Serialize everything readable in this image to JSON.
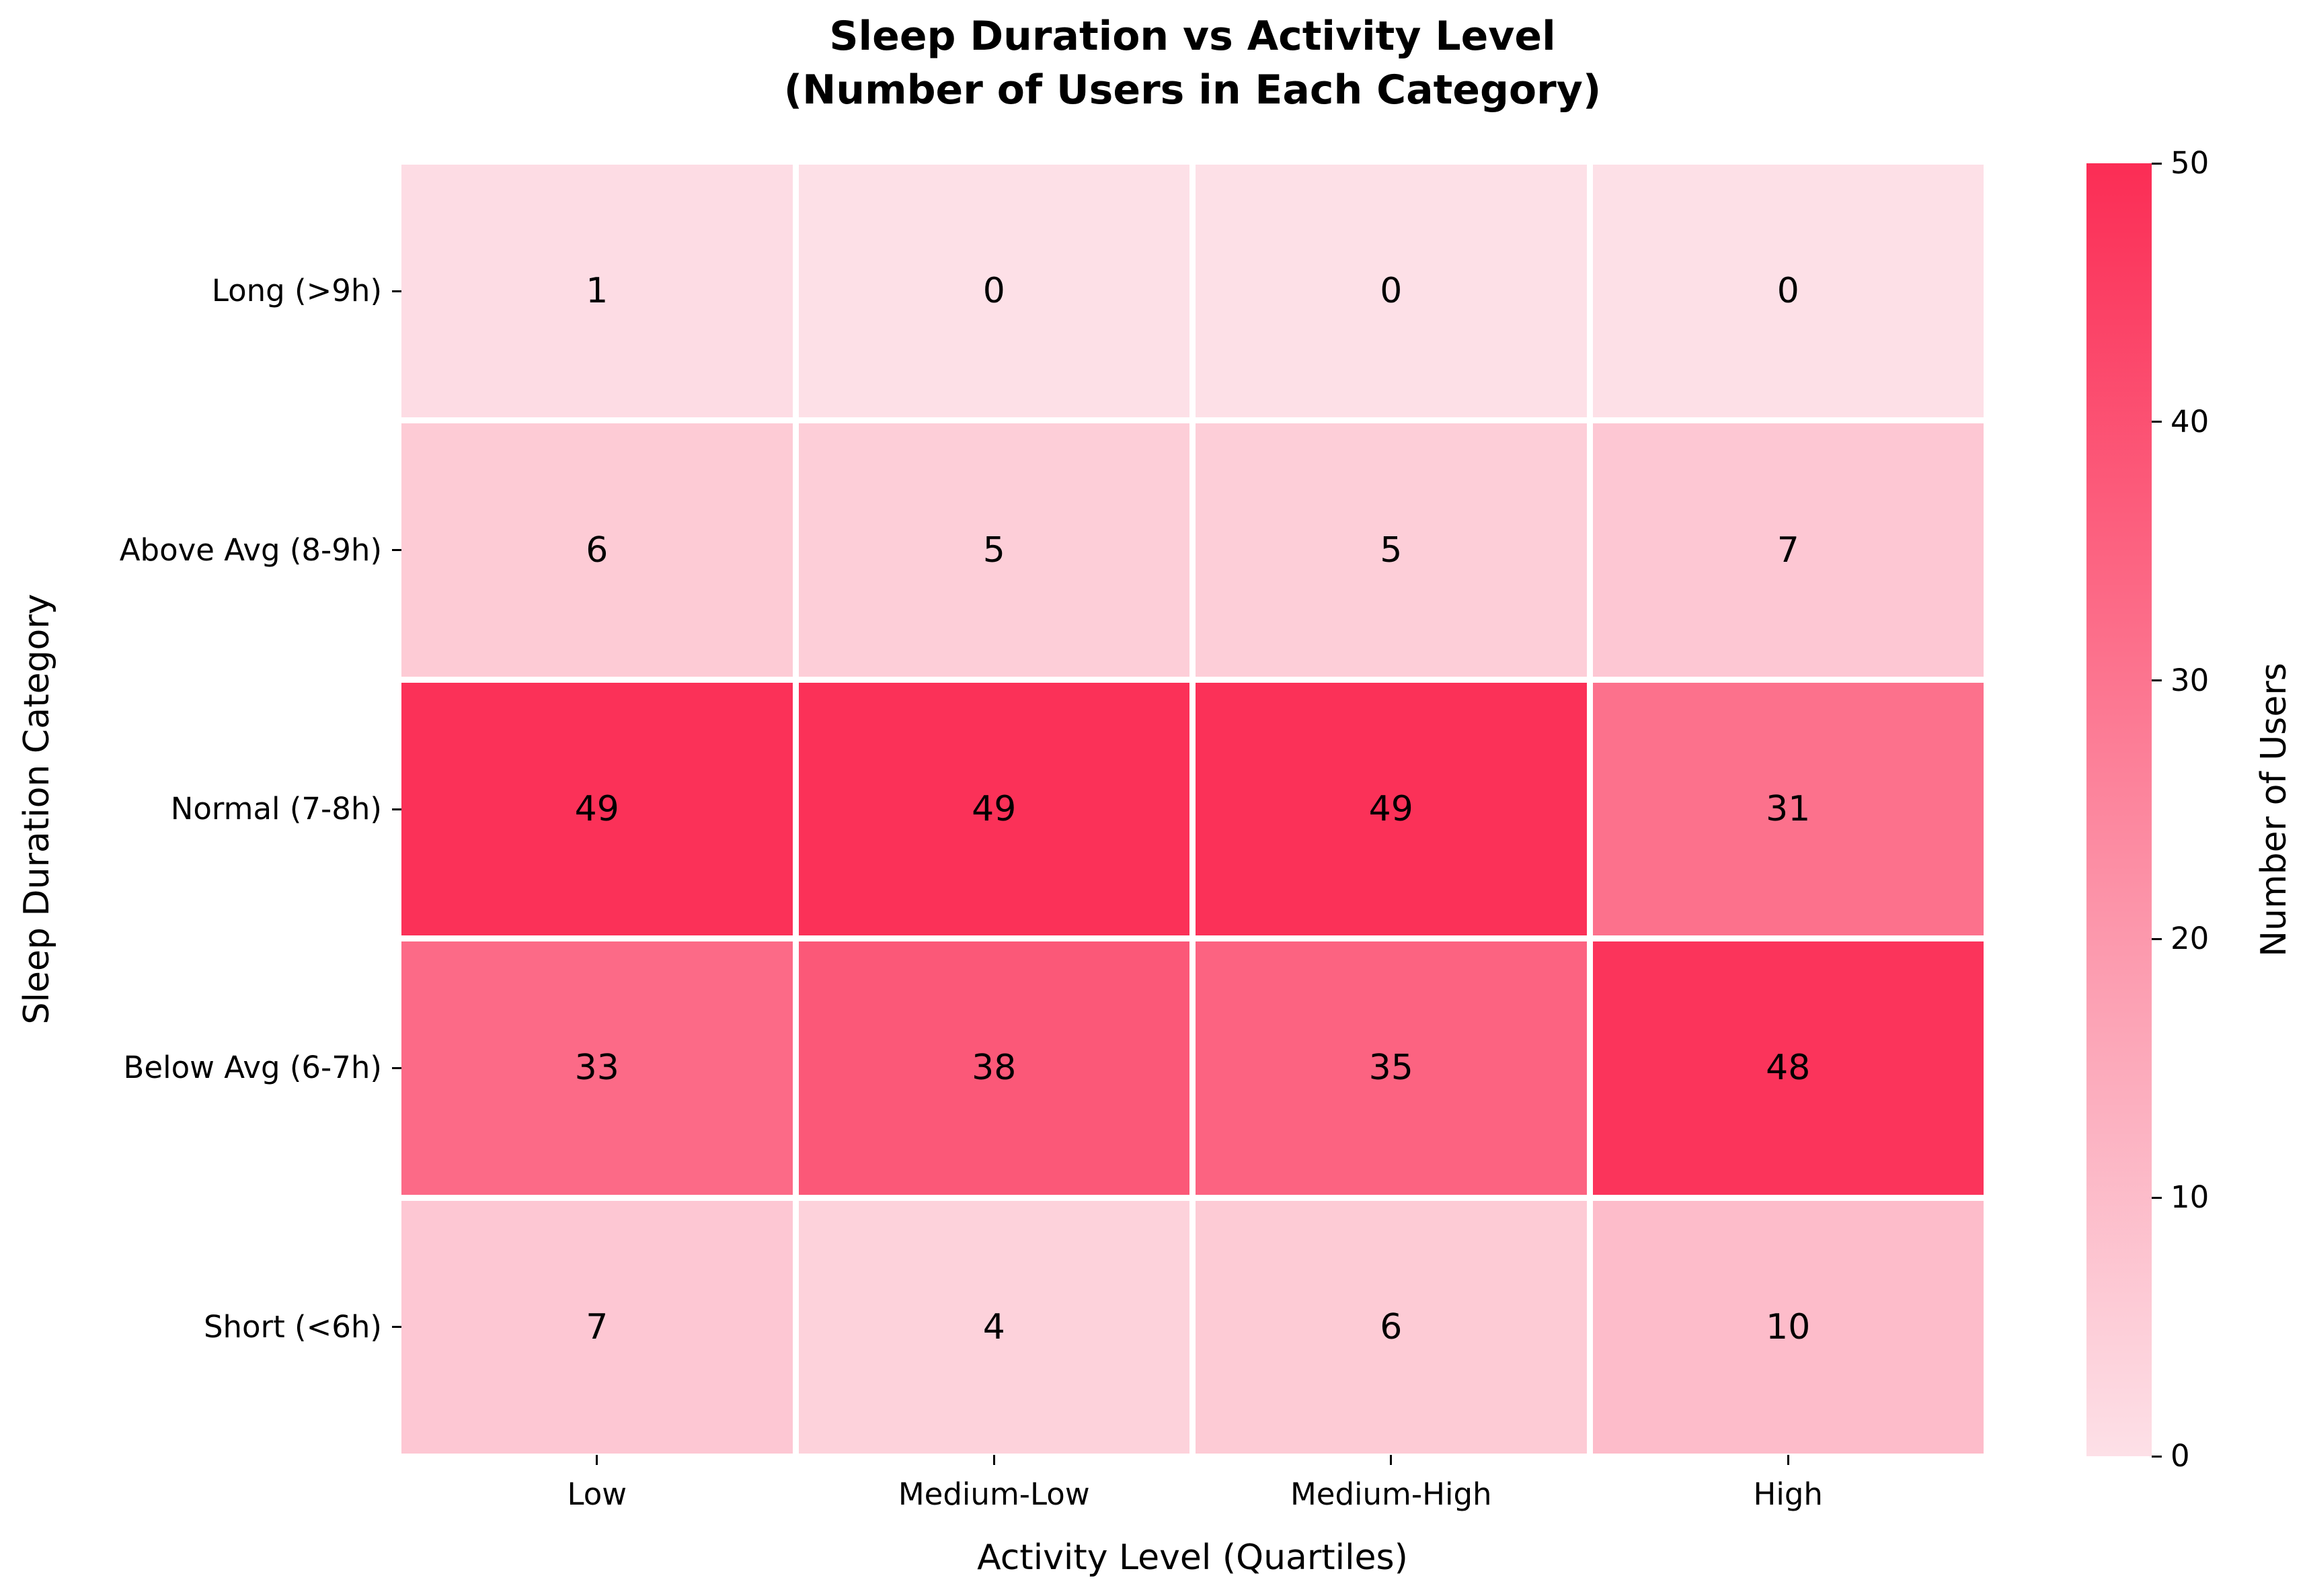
{
  "title": {
    "line1": "Sleep Duration vs Activity Level",
    "line2": "(Number of Users in Each Category)"
  },
  "chart_data": {
    "type": "heatmap",
    "title": "Sleep Duration vs Activity Level\n(Number of Users in Each Category)",
    "xlabel": "Activity Level (Quartiles)",
    "ylabel": "Sleep Duration Category",
    "x_categories": [
      "Low",
      "Medium-Low",
      "Medium-High",
      "High"
    ],
    "y_categories": [
      "Long (>9h)",
      "Above Avg (8-9h)",
      "Normal (7-8h)",
      "Below Avg (6-7h)",
      "Short (<6h)"
    ],
    "values": [
      [
        1,
        0,
        0,
        0
      ],
      [
        6,
        5,
        5,
        7
      ],
      [
        49,
        49,
        49,
        31
      ],
      [
        33,
        38,
        35,
        48
      ],
      [
        7,
        4,
        6,
        10
      ]
    ],
    "annotation_color": "#000000",
    "cell_gap_color": "#ffffff",
    "colormap": {
      "min_value": 0,
      "max_value": 50,
      "min_color": "#fde0e7",
      "max_color": "#fb2d55"
    },
    "colorbar": {
      "label": "Number of Users",
      "ticks": [
        0,
        10,
        20,
        30,
        40,
        50
      ],
      "position": "right"
    },
    "legend": null,
    "grid": "white cell separators"
  }
}
